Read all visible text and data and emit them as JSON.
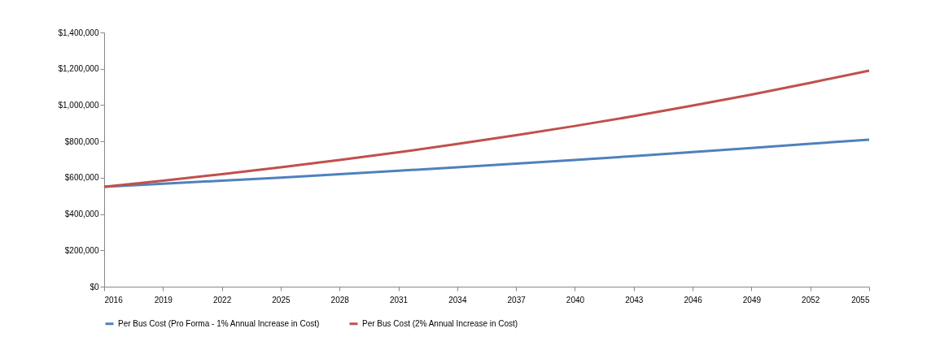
{
  "chart_data": {
    "type": "line",
    "x": [
      2016,
      2019,
      2022,
      2025,
      2028,
      2031,
      2034,
      2037,
      2040,
      2043,
      2046,
      2049,
      2052,
      2055
    ],
    "series": [
      {
        "name": "Per Bus Cost (Pro Forma - 1% Annual Increase in Cost)",
        "color": "#4f81bd",
        "values": [
          550000,
          567000,
          584000,
          601000,
          620000,
          638000,
          658000,
          678000,
          698000,
          719000,
          741000,
          764000,
          787000,
          810000
        ]
      },
      {
        "name": "Per Bus Cost (2% Annual Increase in Cost)",
        "color": "#c0504d",
        "values": [
          550000,
          584000,
          620000,
          657000,
          698000,
          740000,
          786000,
          834000,
          885000,
          939000,
          997000,
          1058000,
          1123000,
          1190000
        ]
      }
    ],
    "xlim": [
      2016,
      2055
    ],
    "xticks": [
      2016,
      2019,
      2022,
      2025,
      2028,
      2031,
      2034,
      2037,
      2040,
      2043,
      2046,
      2049,
      2052,
      2055
    ],
    "ylim": [
      0,
      1400000
    ],
    "yticks": [
      {
        "value": 0,
        "label": "$0"
      },
      {
        "value": 200000,
        "label": "$200,000"
      },
      {
        "value": 400000,
        "label": "$400,000"
      },
      {
        "value": 600000,
        "label": "$600,000"
      },
      {
        "value": 800000,
        "label": "$800,000"
      },
      {
        "value": 1000000,
        "label": "$1,000,000"
      },
      {
        "value": 1200000,
        "label": "$1,200,000"
      },
      {
        "value": 1400000,
        "label": "$1,400,000"
      }
    ],
    "grid": false,
    "legend": "bottom",
    "marker": "none",
    "line_style": "solid"
  }
}
